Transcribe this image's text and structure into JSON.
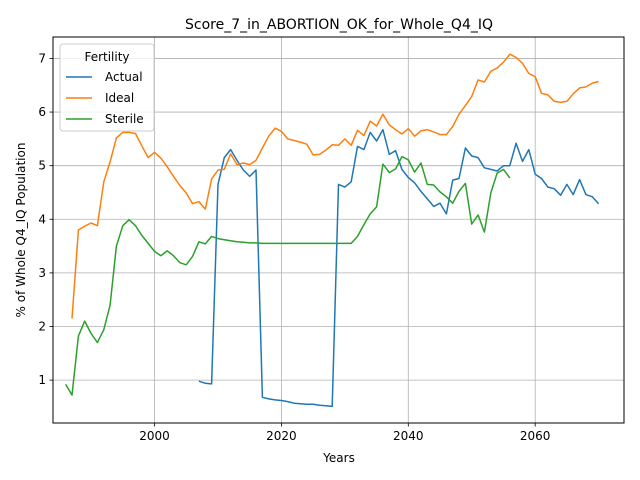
{
  "chart_data": {
    "type": "line",
    "title": "Score_7_in_ABORTION_OK_for_Whole_Q4_IQ",
    "xlabel": "Years",
    "ylabel": "% of Whole Q4_IQ Population",
    "xlim": [
      1984,
      2074
    ],
    "ylim": [
      0.2,
      7.4
    ],
    "xticks": [
      2000,
      2020,
      2040,
      2060
    ],
    "yticks": [
      1,
      2,
      3,
      4,
      5,
      6,
      7
    ],
    "grid": true,
    "legend": {
      "title": "Fertility",
      "placement": "top-left"
    },
    "series": [
      {
        "name": "Actual",
        "color": "#1f77b4",
        "x": [
          2007,
          2008,
          2009,
          2010,
          2011,
          2012,
          2013,
          2014,
          2015,
          2016,
          2017,
          2018,
          2019,
          2020,
          2021,
          2022,
          2023,
          2024,
          2025,
          2026,
          2027,
          2028,
          2029,
          2030,
          2031,
          2032,
          2033,
          2034,
          2035,
          2036,
          2037,
          2038,
          2039,
          2040,
          2041,
          2042,
          2043,
          2044,
          2045,
          2046,
          2047,
          2048,
          2049,
          2050,
          2051,
          2052,
          2053,
          2054,
          2055,
          2056,
          2057,
          2058,
          2059,
          2060,
          2061,
          2062,
          2063,
          2064,
          2065,
          2066,
          2067,
          2068,
          2069,
          2070
        ],
        "y": [
          0.98,
          0.94,
          0.93,
          4.65,
          5.15,
          5.3,
          5.1,
          4.92,
          4.8,
          4.92,
          0.68,
          0.65,
          0.63,
          0.62,
          0.6,
          0.57,
          0.56,
          0.55,
          0.55,
          0.53,
          0.52,
          0.51,
          4.65,
          4.6,
          4.7,
          5.36,
          5.3,
          5.62,
          5.46,
          5.67,
          5.21,
          5.28,
          4.93,
          4.78,
          4.68,
          4.52,
          4.38,
          4.24,
          4.3,
          4.1,
          4.73,
          4.76,
          5.33,
          5.18,
          5.15,
          4.96,
          4.93,
          4.9,
          5.0,
          5.0,
          5.42,
          5.08,
          5.3,
          4.84,
          4.76,
          4.6,
          4.57,
          4.45,
          4.65,
          4.46,
          4.74,
          4.46,
          4.42,
          4.29
        ]
      },
      {
        "name": "Ideal",
        "color": "#ff7f0e",
        "x": [
          1987,
          1988,
          1989,
          1990,
          1991,
          1992,
          1993,
          1994,
          1995,
          1996,
          1997,
          1998,
          1999,
          2000,
          2001,
          2002,
          2003,
          2004,
          2005,
          2006,
          2007,
          2008,
          2009,
          2010,
          2011,
          2012,
          2013,
          2014,
          2015,
          2016,
          2017,
          2018,
          2019,
          2020,
          2021,
          2022,
          2023,
          2024,
          2025,
          2026,
          2027,
          2028,
          2029,
          2030,
          2031,
          2032,
          2033,
          2034,
          2035,
          2036,
          2037,
          2038,
          2039,
          2040,
          2041,
          2042,
          2043,
          2044,
          2045,
          2046,
          2047,
          2048,
          2049,
          2050,
          2051,
          2052,
          2053,
          2054,
          2055,
          2056,
          2057,
          2058,
          2059,
          2060,
          2061,
          2062,
          2063,
          2064,
          2065,
          2066,
          2067,
          2068,
          2069,
          2070
        ],
        "y": [
          2.15,
          3.8,
          3.87,
          3.93,
          3.88,
          4.7,
          5.07,
          5.52,
          5.62,
          5.62,
          5.6,
          5.37,
          5.15,
          5.25,
          5.14,
          4.98,
          4.8,
          4.63,
          4.49,
          4.29,
          4.33,
          4.19,
          4.75,
          4.92,
          4.93,
          5.22,
          5.02,
          5.05,
          5.02,
          5.1,
          5.33,
          5.55,
          5.7,
          5.64,
          5.5,
          5.47,
          5.44,
          5.4,
          5.2,
          5.21,
          5.29,
          5.39,
          5.38,
          5.5,
          5.38,
          5.66,
          5.56,
          5.83,
          5.74,
          5.96,
          5.76,
          5.67,
          5.59,
          5.69,
          5.55,
          5.65,
          5.67,
          5.63,
          5.58,
          5.58,
          5.73,
          5.96,
          6.12,
          6.29,
          6.6,
          6.56,
          6.76,
          6.82,
          6.93,
          7.08,
          7.02,
          6.91,
          6.72,
          6.66,
          6.35,
          6.32,
          6.2,
          6.18,
          6.2,
          6.34,
          6.45,
          6.47,
          6.54,
          6.57
        ]
      },
      {
        "name": "Sterile",
        "color": "#2ca02c",
        "x": [
          1986,
          1987,
          1988,
          1989,
          1990,
          1991,
          1992,
          1993,
          1994,
          1995,
          1996,
          1997,
          1998,
          1999,
          2000,
          2001,
          2002,
          2003,
          2004,
          2005,
          2006,
          2007,
          2008,
          2009,
          2010,
          2011,
          2012,
          2013,
          2014,
          2015,
          2016,
          2017,
          2018,
          2019,
          2020,
          2021,
          2022,
          2023,
          2024,
          2025,
          2026,
          2027,
          2028,
          2029,
          2030,
          2031,
          2032,
          2033,
          2034,
          2035,
          2036,
          2037,
          2038,
          2039,
          2040,
          2041,
          2042,
          2043,
          2044,
          2045,
          2046,
          2047,
          2048,
          2049,
          2050,
          2051,
          2052,
          2053,
          2054,
          2055,
          2056
        ],
        "y": [
          0.92,
          0.72,
          1.82,
          2.1,
          1.87,
          1.7,
          1.94,
          2.4,
          3.5,
          3.88,
          3.99,
          3.88,
          3.7,
          3.55,
          3.4,
          3.32,
          3.41,
          3.32,
          3.19,
          3.15,
          3.31,
          3.58,
          3.54,
          3.68,
          3.64,
          3.62,
          3.6,
          3.58,
          3.57,
          3.56,
          3.56,
          3.55,
          3.55,
          3.55,
          3.55,
          3.55,
          3.55,
          3.55,
          3.55,
          3.55,
          3.55,
          3.55,
          3.55,
          3.55,
          3.55,
          3.55,
          3.68,
          3.9,
          4.1,
          4.23,
          5.03,
          4.87,
          4.94,
          5.17,
          5.11,
          4.88,
          5.05,
          4.65,
          4.64,
          4.51,
          4.42,
          4.3,
          4.52,
          4.67,
          3.91,
          4.08,
          3.76,
          4.49,
          4.86,
          4.93,
          4.77
        ]
      }
    ]
  }
}
